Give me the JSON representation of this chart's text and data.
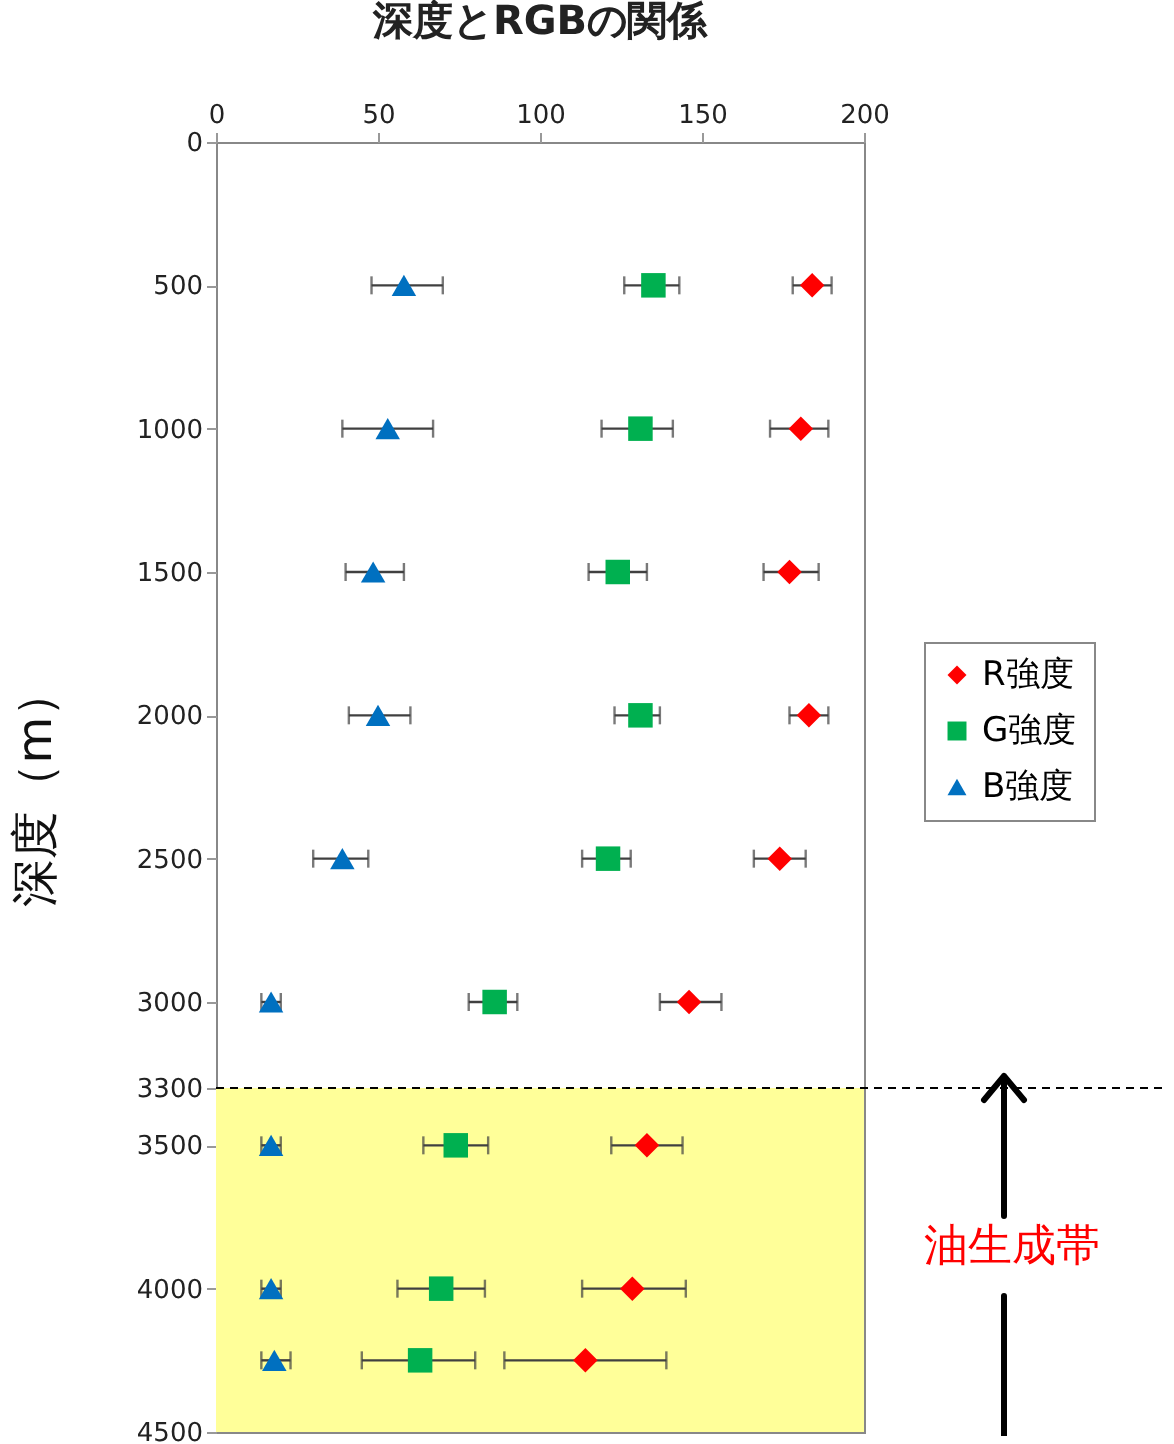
{
  "chart_data": {
    "type": "scatter",
    "title": "深度とRGBの関係",
    "ylabel": "深度（m）",
    "xlim": [
      0,
      200
    ],
    "xticks": [
      0,
      50,
      100,
      150,
      200
    ],
    "ylim": [
      4500,
      0
    ],
    "yticks": [
      0,
      500,
      1000,
      1500,
      2000,
      2500,
      3000,
      3300,
      3500,
      4000,
      4500
    ],
    "grid": false,
    "legend": "right",
    "series": [
      {
        "name": "R強度",
        "color": "#ff0000",
        "marker": "diamond",
        "x": [
          184,
          180.5,
          177,
          183,
          174,
          146,
          133,
          128.5,
          114
        ],
        "values": [
          500,
          1000,
          1500,
          2000,
          2500,
          3000,
          3500,
          4000,
          4250
        ],
        "xerrors": [
          [
            178,
            190
          ],
          [
            171,
            189
          ],
          [
            169,
            186
          ],
          [
            177,
            189
          ],
          [
            166,
            182
          ],
          [
            137,
            156
          ],
          [
            122,
            144
          ],
          [
            113,
            145
          ],
          [
            89,
            139
          ]
        ]
      },
      {
        "name": "G強度",
        "color": "#00b050",
        "marker": "square",
        "x": [
          135,
          131,
          124,
          131,
          121,
          86,
          74,
          69.5,
          63
        ],
        "values": [
          500,
          1000,
          1500,
          2000,
          2500,
          3000,
          3500,
          4000,
          4250
        ],
        "xerrors": [
          [
            126,
            143
          ],
          [
            119,
            141
          ],
          [
            115,
            133
          ],
          [
            123,
            137
          ],
          [
            113,
            128
          ],
          [
            78,
            93
          ],
          [
            64,
            84
          ],
          [
            56,
            83
          ],
          [
            45,
            80
          ]
        ]
      },
      {
        "name": "B強度",
        "color": "#0070c0",
        "marker": "triangle",
        "x": [
          58,
          53,
          48.5,
          50,
          39,
          17,
          17,
          17,
          18
        ],
        "values": [
          500,
          1000,
          1500,
          2000,
          2500,
          3000,
          3500,
          4000,
          4250
        ],
        "xerrors": [
          [
            48,
            70
          ],
          [
            39,
            67
          ],
          [
            40,
            58
          ],
          [
            41,
            60
          ],
          [
            30,
            47
          ],
          [
            14,
            20
          ],
          [
            14,
            20
          ],
          [
            14,
            20
          ],
          [
            14,
            23
          ]
        ]
      }
    ],
    "bands": [
      {
        "axis": "y",
        "from": 3300,
        "to": 4500,
        "color": "#ffff99"
      }
    ],
    "ref_lines": [
      {
        "axis": "y",
        "value": 3300,
        "color": "#000000",
        "line_style": "dashed"
      }
    ],
    "annotations": [
      "油生成帯"
    ]
  }
}
